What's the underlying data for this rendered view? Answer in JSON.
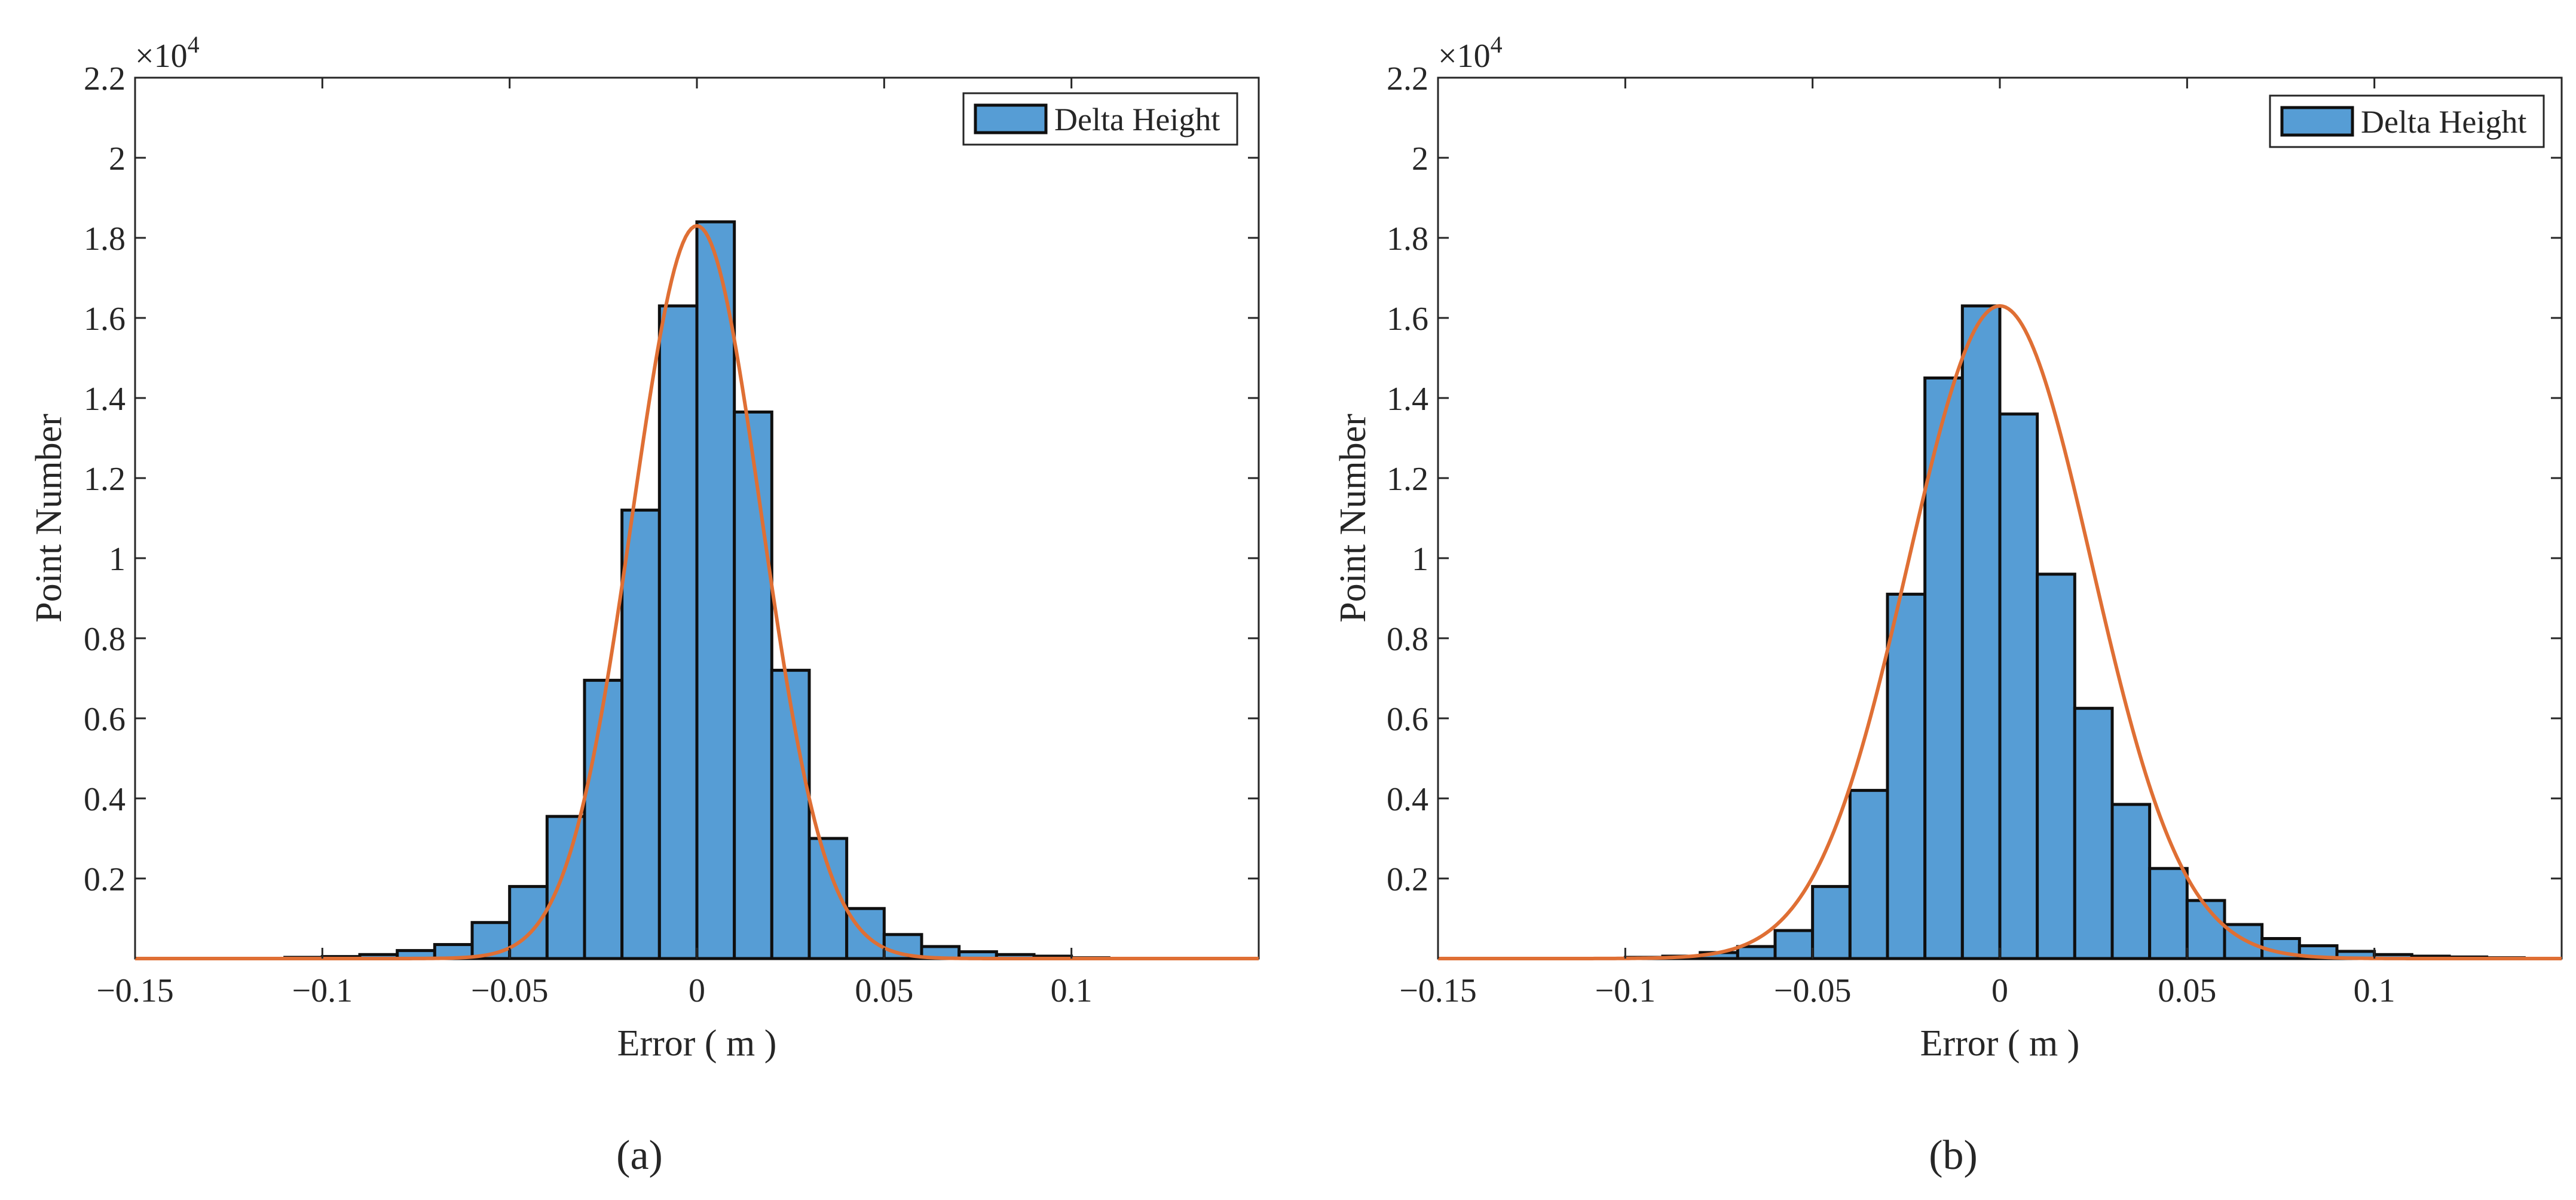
{
  "chart_data": [
    {
      "type": "bar",
      "panel_label": "(a)",
      "xlabel": "Error ( m )",
      "ylabel": "Point Number",
      "y_multiplier": "×10",
      "y_exponent": "4",
      "legend_label": "Delta Height",
      "xlim": [
        -0.15,
        0.15
      ],
      "ylim": [
        0,
        22000
      ],
      "xticks": [
        -0.15,
        -0.1,
        -0.05,
        0,
        0.05,
        0.1
      ],
      "xtick_labels": [
        "−0.15",
        "−0.1",
        "−0.05",
        "0",
        "0.05",
        "0.1"
      ],
      "yticks": [
        2000,
        4000,
        6000,
        8000,
        10000,
        12000,
        14000,
        16000,
        18000,
        20000,
        22000
      ],
      "ytick_labels": [
        "0.2",
        "0.4",
        "0.6",
        "0.8",
        "1",
        "1.2",
        "1.4",
        "1.6",
        "1.8",
        "2",
        "2.2"
      ],
      "bin_width": 0.01,
      "bin_lefts": [
        -0.11,
        -0.1,
        -0.09,
        -0.08,
        -0.07,
        -0.06,
        -0.05,
        -0.04,
        -0.03,
        -0.02,
        -0.01,
        0.0,
        0.01,
        0.02,
        0.03,
        0.04,
        0.05,
        0.06,
        0.07,
        0.08,
        0.09,
        0.1
      ],
      "counts": [
        30,
        50,
        100,
        200,
        350,
        900,
        1800,
        3550,
        6950,
        11200,
        16300,
        18400,
        13650,
        7200,
        3000,
        1250,
        600,
        300,
        170,
        100,
        60,
        20
      ],
      "fit_curve": {
        "type": "gaussian",
        "mu": 0.0,
        "sigma": 0.0172,
        "peak": 18300
      },
      "colors": {
        "bar_fill": "#569dd5",
        "bar_edge": "#0f0f0f",
        "fit_line": "#df6f34"
      }
    },
    {
      "type": "bar",
      "panel_label": "(b)",
      "xlabel": "Error ( m )",
      "ylabel": "Point Number",
      "y_multiplier": "×10",
      "y_exponent": "4",
      "legend_label": "Delta Height",
      "xlim": [
        -0.15,
        0.15
      ],
      "ylim": [
        0,
        22000
      ],
      "xticks": [
        -0.15,
        -0.1,
        -0.05,
        0,
        0.05,
        0.1
      ],
      "xtick_labels": [
        "−0.15",
        "−0.1",
        "−0.05",
        "0",
        "0.05",
        "0.1"
      ],
      "yticks": [
        2000,
        4000,
        6000,
        8000,
        10000,
        12000,
        14000,
        16000,
        18000,
        20000,
        22000
      ],
      "ytick_labels": [
        "0.2",
        "0.4",
        "0.6",
        "0.8",
        "1",
        "1.2",
        "1.4",
        "1.6",
        "1.8",
        "2",
        "2.2"
      ],
      "bin_width": 0.01,
      "bin_lefts": [
        -0.1,
        -0.09,
        -0.08,
        -0.07,
        -0.06,
        -0.05,
        -0.04,
        -0.03,
        -0.02,
        -0.01,
        0.0,
        0.01,
        0.02,
        0.03,
        0.04,
        0.05,
        0.06,
        0.07,
        0.08,
        0.09,
        0.1,
        0.11,
        0.12,
        0.13
      ],
      "counts": [
        30,
        60,
        150,
        300,
        700,
        1800,
        4200,
        9100,
        14500,
        16300,
        13600,
        9600,
        6250,
        3850,
        2250,
        1450,
        850,
        500,
        320,
        180,
        100,
        60,
        40,
        20
      ],
      "fit_curve": {
        "type": "gaussian",
        "mu": 0.0,
        "sigma": 0.0245,
        "peak": 16300
      },
      "colors": {
        "bar_fill": "#569dd5",
        "bar_edge": "#0f0f0f",
        "fit_line": "#df6f34"
      }
    }
  ]
}
